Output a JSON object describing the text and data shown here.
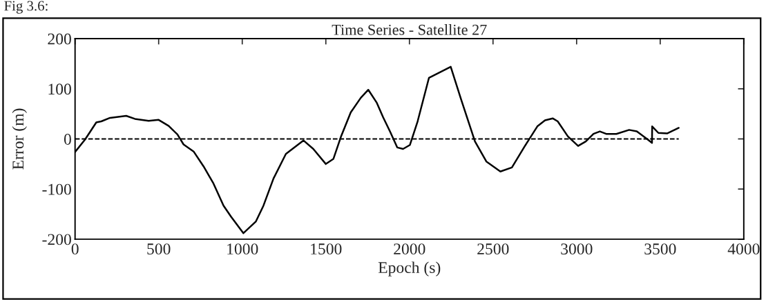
{
  "chart_data": {
    "type": "line",
    "title": "Time Series - Satellite 27",
    "xlabel": "Epoch (s)",
    "ylabel": "Error (m)",
    "annotations": [
      "Fig 3.6:"
    ],
    "series": [
      {
        "color": "#000000",
        "x": [
          0,
          60,
          127,
          157,
          209,
          306,
          358,
          440,
          500,
          560,
          612,
          649,
          709,
          769,
          828,
          888,
          933,
          1007,
          1081,
          1127,
          1187,
          1261,
          1366,
          1425,
          1500,
          1545,
          1590,
          1649,
          1709,
          1754,
          1805,
          1843,
          1885,
          1927,
          1962,
          2003,
          2049,
          2117,
          2247,
          2308,
          2392,
          2460,
          2544,
          2613,
          2689,
          2765,
          2811,
          2857,
          2887,
          2948,
          3009,
          3055,
          3101,
          3139,
          3177,
          3238,
          3314,
          3360,
          3421,
          3451,
          3452,
          3489,
          3543,
          3611
        ],
        "values": [
          -26,
          -1,
          33,
          35,
          42,
          46,
          40,
          36,
          38,
          26,
          9,
          -11,
          -25,
          -55,
          -89,
          -133,
          -155,
          -188,
          -165,
          -133,
          -79,
          -30,
          -3,
          -20,
          -50,
          -40,
          4,
          53,
          82,
          98,
          72,
          43,
          14,
          -17,
          -20,
          -12,
          35,
          122,
          144,
          80,
          -5,
          -45,
          -65,
          -57,
          -15,
          25,
          37,
          41,
          35,
          5,
          -14,
          -5,
          10,
          15,
          10,
          10,
          18,
          15,
          0,
          -8,
          25,
          12,
          11,
          22
        ]
      }
    ],
    "ref_lines": [
      {
        "axis": "y",
        "value": 0,
        "color": "#000000",
        "line_style": "dashed"
      }
    ],
    "xlim": [
      0,
      4000
    ],
    "xticks": [
      0,
      500,
      1000,
      1500,
      2000,
      2500,
      3000,
      3500,
      4000
    ],
    "ylim": [
      -200,
      200
    ],
    "yticks": [
      -200,
      -100,
      0,
      100,
      200
    ],
    "line_style": "solid"
  }
}
